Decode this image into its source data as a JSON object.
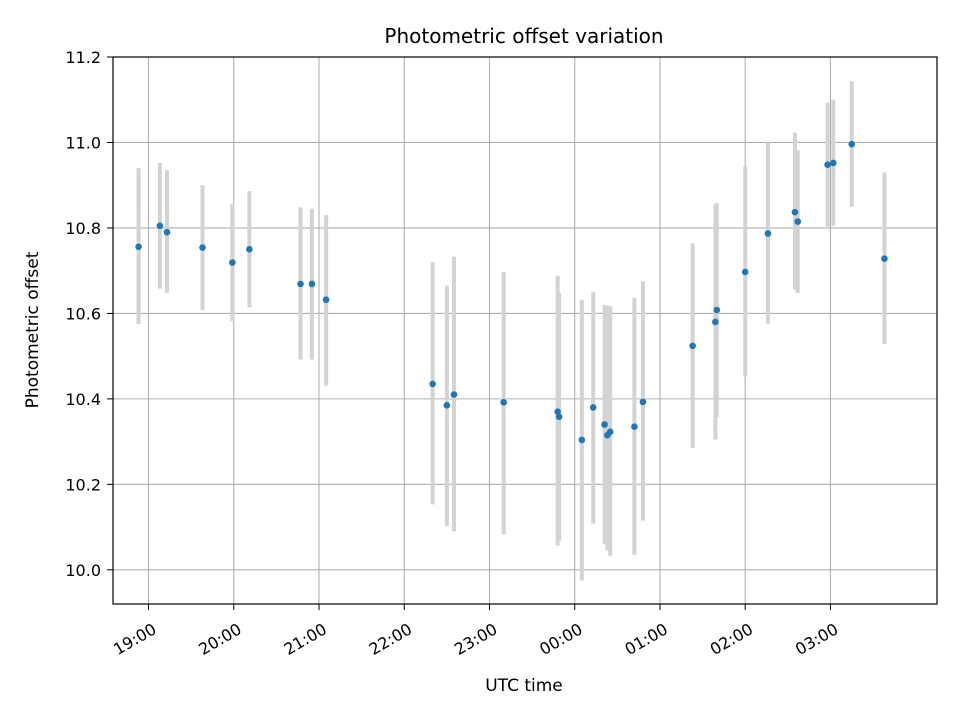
{
  "chart_data": {
    "type": "scatter",
    "title": "Photometric offset variation",
    "xlabel": "UTC time",
    "ylabel": "Photometric offset",
    "x_unit": "UTC time",
    "xlim": [
      "18:35",
      "04:15"
    ],
    "ylim": [
      9.92,
      11.2
    ],
    "x_ticks": [
      "19:00",
      "20:00",
      "21:00",
      "22:00",
      "23:00",
      "00:00",
      "01:00",
      "02:00",
      "03:00"
    ],
    "y_ticks": [
      "10.0",
      "10.2",
      "10.4",
      "10.6",
      "10.8",
      "11.0",
      "11.2"
    ],
    "grid": true,
    "legend": "none",
    "colors": {
      "points": "#1f77b4",
      "errorbars": "#d3d3d3",
      "grid": "#b0b0b0"
    },
    "points": [
      {
        "x": "18:53",
        "y": 10.756,
        "ylow": 10.575,
        "yhigh": 10.94
      },
      {
        "x": "19:08",
        "y": 10.805,
        "ylow": 10.658,
        "yhigh": 10.952
      },
      {
        "x": "19:13",
        "y": 10.79,
        "ylow": 10.648,
        "yhigh": 10.935
      },
      {
        "x": "19:38",
        "y": 10.754,
        "ylow": 10.607,
        "yhigh": 10.9
      },
      {
        "x": "19:59",
        "y": 10.719,
        "ylow": 10.582,
        "yhigh": 10.856
      },
      {
        "x": "20:11",
        "y": 10.75,
        "ylow": 10.614,
        "yhigh": 10.886
      },
      {
        "x": "20:47",
        "y": 10.669,
        "ylow": 10.492,
        "yhigh": 10.848
      },
      {
        "x": "20:55",
        "y": 10.669,
        "ylow": 10.492,
        "yhigh": 10.845
      },
      {
        "x": "21:05",
        "y": 10.632,
        "ylow": 10.431,
        "yhigh": 10.83
      },
      {
        "x": "22:20",
        "y": 10.435,
        "ylow": 10.153,
        "yhigh": 10.72
      },
      {
        "x": "22:30",
        "y": 10.385,
        "ylow": 10.103,
        "yhigh": 10.665
      },
      {
        "x": "22:35",
        "y": 10.41,
        "ylow": 10.09,
        "yhigh": 10.733
      },
      {
        "x": "23:10",
        "y": 10.392,
        "ylow": 10.083,
        "yhigh": 10.697
      },
      {
        "x": "23:48",
        "y": 10.37,
        "ylow": 10.057,
        "yhigh": 10.688
      },
      {
        "x": "23:49",
        "y": 10.358,
        "ylow": 10.068,
        "yhigh": 10.648
      },
      {
        "x": "00:05",
        "y": 10.304,
        "ylow": 9.975,
        "yhigh": 10.632
      },
      {
        "x": "00:13",
        "y": 10.38,
        "ylow": 10.108,
        "yhigh": 10.65
      },
      {
        "x": "00:21",
        "y": 10.34,
        "ylow": 10.06,
        "yhigh": 10.62
      },
      {
        "x": "00:23",
        "y": 10.315,
        "ylow": 10.045,
        "yhigh": 10.618
      },
      {
        "x": "00:25",
        "y": 10.323,
        "ylow": 10.033,
        "yhigh": 10.617
      },
      {
        "x": "00:42",
        "y": 10.335,
        "ylow": 10.035,
        "yhigh": 10.637
      },
      {
        "x": "00:48",
        "y": 10.393,
        "ylow": 10.115,
        "yhigh": 10.675
      },
      {
        "x": "01:23",
        "y": 10.524,
        "ylow": 10.285,
        "yhigh": 10.764
      },
      {
        "x": "01:39",
        "y": 10.58,
        "ylow": 10.305,
        "yhigh": 10.855
      },
      {
        "x": "01:40",
        "y": 10.608,
        "ylow": 10.358,
        "yhigh": 10.858
      },
      {
        "x": "02:00",
        "y": 10.697,
        "ylow": 10.452,
        "yhigh": 10.944
      },
      {
        "x": "02:16",
        "y": 10.787,
        "ylow": 10.576,
        "yhigh": 11.0
      },
      {
        "x": "02:35",
        "y": 10.837,
        "ylow": 10.655,
        "yhigh": 11.023
      },
      {
        "x": "02:37",
        "y": 10.815,
        "ylow": 10.648,
        "yhigh": 10.982
      },
      {
        "x": "02:58",
        "y": 10.948,
        "ylow": 10.803,
        "yhigh": 11.093
      },
      {
        "x": "03:02",
        "y": 10.952,
        "ylow": 10.805,
        "yhigh": 11.1
      },
      {
        "x": "03:15",
        "y": 10.996,
        "ylow": 10.85,
        "yhigh": 11.143
      },
      {
        "x": "03:38",
        "y": 10.728,
        "ylow": 10.528,
        "yhigh": 10.93
      }
    ]
  }
}
